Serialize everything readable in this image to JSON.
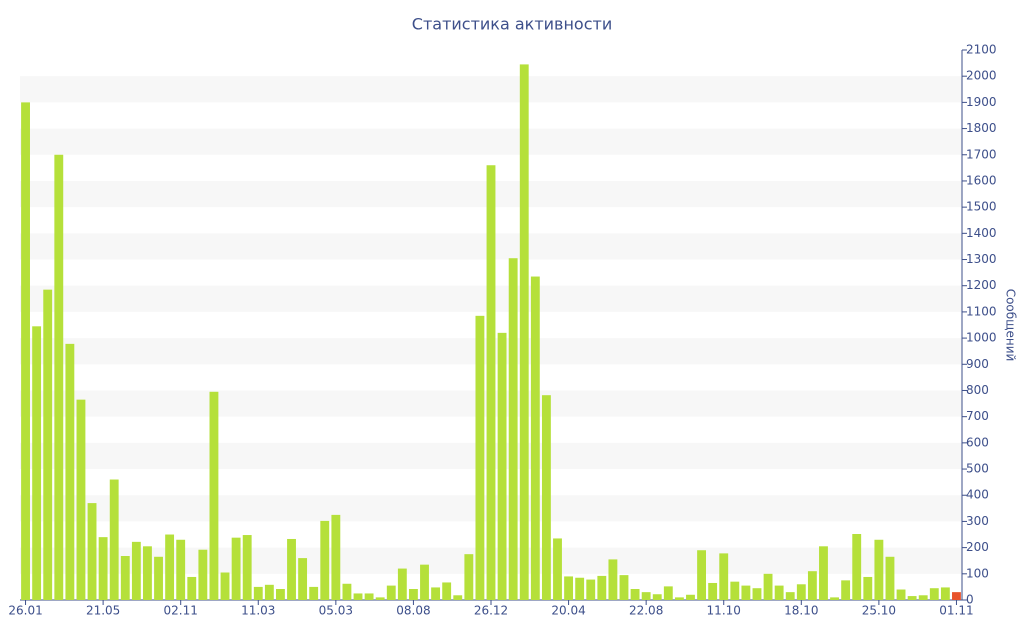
{
  "chart_data": {
    "type": "bar",
    "title": "Статистика активности",
    "y_label": "Сообщений",
    "categories": [
      "26.01",
      null,
      null,
      null,
      null,
      null,
      null,
      "21.05",
      null,
      null,
      null,
      null,
      null,
      null,
      "02.11",
      null,
      null,
      null,
      null,
      null,
      null,
      "11.03",
      null,
      null,
      null,
      null,
      null,
      null,
      "05.03",
      null,
      null,
      null,
      null,
      null,
      null,
      "08.08",
      null,
      null,
      null,
      null,
      null,
      null,
      "26.12",
      null,
      null,
      null,
      null,
      null,
      null,
      "20.04",
      null,
      null,
      null,
      null,
      null,
      null,
      "22.08",
      null,
      null,
      null,
      null,
      null,
      null,
      "11.10",
      null,
      null,
      null,
      null,
      null,
      null,
      "18.10",
      null,
      null,
      null,
      null,
      null,
      null,
      "25.10",
      null,
      null,
      null,
      null,
      null,
      null,
      "01.11"
    ],
    "values": [
      1900,
      1045,
      1185,
      1700,
      978,
      765,
      370,
      240,
      460,
      168,
      222,
      205,
      165,
      250,
      230,
      88,
      192,
      795,
      105,
      238,
      248,
      50,
      58,
      42,
      233,
      160,
      50,
      302,
      325,
      62,
      25,
      25,
      10,
      55,
      120,
      42,
      135,
      48,
      67,
      18,
      175,
      1085,
      1660,
      1020,
      1305,
      2045,
      1235,
      782,
      235,
      90,
      85,
      78,
      92,
      155,
      95,
      42,
      30,
      22,
      52,
      10,
      20,
      190,
      65,
      178,
      70,
      55,
      45,
      100,
      55,
      30,
      60,
      110,
      205,
      10,
      75,
      252,
      88,
      230,
      165,
      40,
      15,
      18,
      45,
      48,
      30
    ],
    "colors": [
      "#b5e03a",
      "#b5e03a",
      "#b5e03a",
      "#b5e03a",
      "#b5e03a",
      "#b5e03a",
      "#b5e03a",
      "#b5e03a",
      "#b5e03a",
      "#b5e03a",
      "#b5e03a",
      "#b5e03a",
      "#b5e03a",
      "#b5e03a",
      "#b5e03a",
      "#b5e03a",
      "#b5e03a",
      "#b5e03a",
      "#b5e03a",
      "#b5e03a",
      "#b5e03a",
      "#b5e03a",
      "#b5e03a",
      "#b5e03a",
      "#b5e03a",
      "#b5e03a",
      "#b5e03a",
      "#b5e03a",
      "#b5e03a",
      "#b5e03a",
      "#b5e03a",
      "#b5e03a",
      "#b5e03a",
      "#b5e03a",
      "#b5e03a",
      "#b5e03a",
      "#b5e03a",
      "#b5e03a",
      "#b5e03a",
      "#b5e03a",
      "#b5e03a",
      "#b5e03a",
      "#b5e03a",
      "#b5e03a",
      "#b5e03a",
      "#b5e03a",
      "#b5e03a",
      "#b5e03a",
      "#b5e03a",
      "#b5e03a",
      "#b5e03a",
      "#b5e03a",
      "#b5e03a",
      "#b5e03a",
      "#b5e03a",
      "#b5e03a",
      "#b5e03a",
      "#b5e03a",
      "#b5e03a",
      "#b5e03a",
      "#b5e03a",
      "#b5e03a",
      "#b5e03a",
      "#b5e03a",
      "#b5e03a",
      "#b5e03a",
      "#b5e03a",
      "#b5e03a",
      "#b5e03a",
      "#b5e03a",
      "#b5e03a",
      "#b5e03a",
      "#b5e03a",
      "#b5e03a",
      "#b5e03a",
      "#b5e03a",
      "#b5e03a",
      "#b5e03a",
      "#b5e03a",
      "#b5e03a",
      "#b5e03a",
      "#b5e03a",
      "#b5e03a",
      "#b5e03a",
      "#e8532b"
    ],
    "ylim": [
      0,
      2100
    ],
    "yticks": [
      0,
      100,
      200,
      300,
      400,
      500,
      600,
      700,
      800,
      900,
      1000,
      1100,
      1200,
      1300,
      1400,
      1500,
      1600,
      1700,
      1800,
      1900,
      2000,
      2100
    ],
    "grid": "bands",
    "y_axis_side": "right"
  }
}
